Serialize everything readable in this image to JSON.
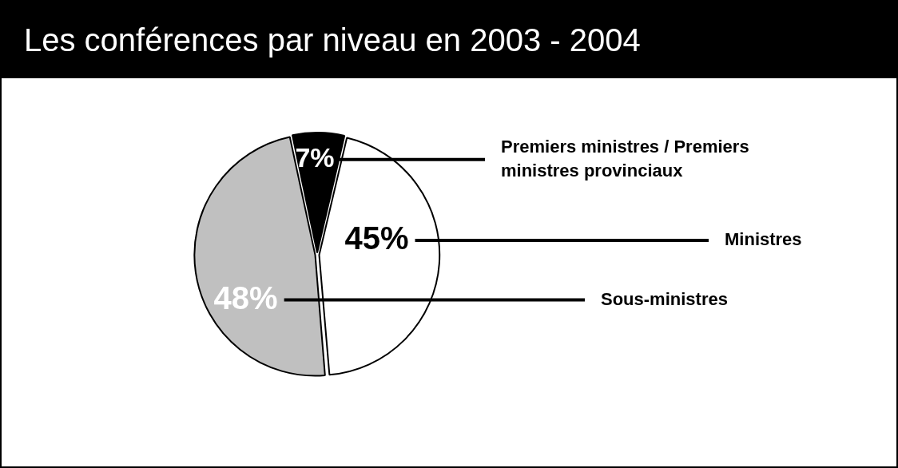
{
  "chart_data": {
    "type": "pie",
    "title": "Les conférences par niveau en 2003 - 2004",
    "categories": [
      "Premiers ministres / Premiers ministres provinciaux",
      "Ministres",
      "Sous-ministres"
    ],
    "values": [
      7,
      45,
      48
    ],
    "colors": [
      "#000000",
      "#ffffff",
      "#c0c0c0"
    ],
    "value_labels": [
      "7%",
      "45%",
      "48%"
    ],
    "legend": false
  }
}
